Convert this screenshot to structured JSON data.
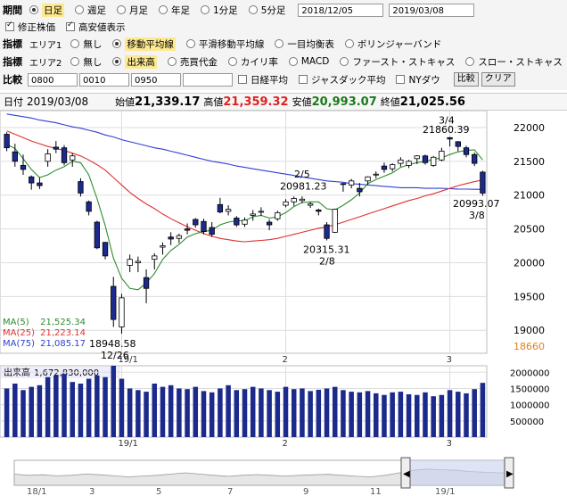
{
  "period": {
    "label": "期間",
    "options": [
      {
        "label": "日足",
        "selected": true
      },
      {
        "label": "週足",
        "selected": false
      },
      {
        "label": "月足",
        "selected": false
      },
      {
        "label": "年足",
        "selected": false
      },
      {
        "label": "1分足",
        "selected": false
      },
      {
        "label": "5分足",
        "selected": false
      }
    ],
    "date_from": "2018/12/05",
    "date_to": "2019/03/08"
  },
  "display": {
    "modified_price": {
      "label": "修正株価",
      "checked": true
    },
    "high_low": {
      "label": "高安値表示",
      "checked": true
    }
  },
  "indicator1": {
    "label": "指標",
    "area": "エリア1",
    "options": [
      {
        "label": "無し",
        "selected": false
      },
      {
        "label": "移動平均線",
        "selected": true
      },
      {
        "label": "平滑移動平均線",
        "selected": false
      },
      {
        "label": "一目均衡表",
        "selected": false
      },
      {
        "label": "ボリンジャーバンド",
        "selected": false
      }
    ]
  },
  "indicator2": {
    "label": "指標",
    "area": "エリア2",
    "options": [
      {
        "label": "無し",
        "selected": false
      },
      {
        "label": "出来高",
        "selected": true
      },
      {
        "label": "売買代金",
        "selected": false
      },
      {
        "label": "カイリ率",
        "selected": false
      },
      {
        "label": "MACD",
        "selected": false
      },
      {
        "label": "ファースト・ストキャス",
        "selected": false
      },
      {
        "label": "スロー・ストキャス",
        "selected": false
      }
    ]
  },
  "compare": {
    "label": "比較",
    "codes": [
      "0800",
      "0010",
      "0950",
      ""
    ],
    "checks": [
      {
        "label": "日経平均",
        "checked": false
      },
      {
        "label": "ジャスダック平均",
        "checked": false
      },
      {
        "label": "NYダウ",
        "checked": false
      }
    ],
    "compare_button": "比較",
    "clear_button": "クリア"
  },
  "ohlc_bar": {
    "label": "日付",
    "date": "2019/03/08",
    "open_label": "始値",
    "open": "21,339.17",
    "high_label": "高値",
    "high": "21,359.32",
    "low_label": "安値",
    "low": "20,993.07",
    "close_label": "終値",
    "close": "21,025.56"
  },
  "ma_legend": [
    {
      "label": "MA(5)",
      "value": "21,525.34",
      "color": "#2e8b2e"
    },
    {
      "label": "MA(25)",
      "value": "21,223.14",
      "color": "#e03030"
    },
    {
      "label": "MA(75)",
      "value": "21,085.17",
      "color": "#3040d0"
    }
  ],
  "volume_label": "出来高",
  "volume_value": "1,672,830,000",
  "annotations": {
    "low_value": "18948.58",
    "low_date": "12/26",
    "feb5_value": "20981.23",
    "feb5_date": "2/5",
    "feb8_value": "20315.31",
    "feb8_date": "2/8",
    "mar4_date": "3/4",
    "mar4_value": "21860.39",
    "mar8_value": "20993.07",
    "mar8_date": "3/8"
  },
  "current_price_marker": "18660",
  "colors": {
    "up": "#ffffff",
    "down": "#1c2a8c",
    "ma5": "#2e8b2e",
    "ma25": "#e03030",
    "ma75": "#3040d0",
    "accent": "#fde98f"
  },
  "navigator": {
    "labels": [
      "18/1",
      "3",
      "5",
      "7",
      "9",
      "11",
      "19/1"
    ]
  },
  "chart_data": {
    "type": "candlestick",
    "x_month_labels": [
      "19/1",
      "2",
      "3"
    ],
    "price_ticks": [
      22000,
      21500,
      21000,
      20500,
      20000,
      19500,
      19000
    ],
    "price_range": [
      18660,
      22250
    ],
    "volume_ticks": [
      2000000,
      1500000,
      1000000,
      500000
    ],
    "volume_tick_labels": [
      "2000000",
      "1500000",
      "1000000",
      "500000"
    ],
    "volume_range": [
      0,
      2200000
    ],
    "candles": [
      [
        21900,
        21930,
        21650,
        21700
      ],
      [
        21640,
        21760,
        21420,
        21500
      ],
      [
        21440,
        21600,
        21300,
        21380
      ],
      [
        21270,
        21290,
        21080,
        21180
      ],
      [
        21180,
        21260,
        21090,
        21140
      ],
      [
        21500,
        21680,
        21420,
        21610
      ],
      [
        21710,
        21800,
        21620,
        21680
      ],
      [
        21700,
        21740,
        21440,
        21480
      ],
      [
        21520,
        21620,
        21420,
        21580
      ],
      [
        21200,
        21250,
        20980,
        21030
      ],
      [
        20900,
        20920,
        20700,
        20760
      ],
      [
        20600,
        20620,
        20200,
        20220
      ],
      [
        20300,
        20310,
        20050,
        20100
      ],
      [
        19650,
        19790,
        19050,
        19160
      ],
      [
        19050,
        19540,
        18950,
        19480
      ],
      [
        19960,
        20120,
        19860,
        20050
      ],
      [
        20000,
        20090,
        19860,
        20020
      ],
      [
        19780,
        19900,
        19400,
        19620
      ],
      [
        20050,
        20140,
        19900,
        20100
      ],
      [
        20230,
        20300,
        20120,
        20250
      ],
      [
        20380,
        20450,
        20260,
        20350
      ],
      [
        20360,
        20430,
        20290,
        20400
      ],
      [
        20500,
        20580,
        20420,
        20480
      ],
      [
        20640,
        20660,
        20520,
        20560
      ],
      [
        20610,
        20650,
        20420,
        20460
      ],
      [
        20520,
        20600,
        20380,
        20420
      ],
      [
        20860,
        20960,
        20730,
        20750
      ],
      [
        20760,
        20850,
        20700,
        20790
      ],
      [
        20660,
        20690,
        20530,
        20560
      ],
      [
        20570,
        20670,
        20530,
        20630
      ],
      [
        20700,
        20780,
        20620,
        20720
      ],
      [
        20760,
        20820,
        20690,
        20760
      ],
      [
        20600,
        20640,
        20480,
        20560
      ],
      [
        20650,
        20770,
        20620,
        20740
      ],
      [
        20850,
        20940,
        20820,
        20900
      ],
      [
        20900,
        20980,
        20840,
        20950
      ],
      [
        20920,
        20980,
        20880,
        20940
      ],
      [
        20850,
        20900,
        20810,
        20870
      ],
      [
        20780,
        20800,
        20700,
        20760
      ],
      [
        20560,
        20600,
        20330,
        20360
      ],
      [
        20450,
        20800,
        20440,
        20790
      ],
      [
        21170,
        21180,
        21050,
        21160
      ],
      [
        21150,
        21240,
        21100,
        21210
      ],
      [
        21100,
        21180,
        20980,
        21050
      ],
      [
        21210,
        21280,
        21150,
        21270
      ],
      [
        21300,
        21350,
        21250,
        21310
      ],
      [
        21430,
        21480,
        21330,
        21380
      ],
      [
        21390,
        21470,
        21350,
        21450
      ],
      [
        21470,
        21560,
        21420,
        21520
      ],
      [
        21440,
        21520,
        21400,
        21500
      ],
      [
        21540,
        21590,
        21460,
        21580
      ],
      [
        21580,
        21600,
        21450,
        21480
      ],
      [
        21440,
        21580,
        21420,
        21560
      ],
      [
        21520,
        21700,
        21500,
        21650
      ],
      [
        21850,
        21860,
        21720,
        21830
      ],
      [
        21790,
        21800,
        21650,
        21720
      ],
      [
        21700,
        21730,
        21560,
        21600
      ],
      [
        21600,
        21630,
        21430,
        21470
      ],
      [
        21340,
        21360,
        20990,
        21030
      ]
    ],
    "volumes": [
      1500000,
      1650000,
      1450000,
      1550000,
      1600000,
      1850000,
      1900000,
      1950000,
      1700000,
      1650000,
      1800000,
      1900000,
      1850000,
      2200000,
      1800000,
      1500000,
      1450000,
      1400000,
      1650000,
      1550000,
      1600000,
      1500000,
      1480000,
      1550000,
      1420000,
      1380000,
      1500000,
      1600000,
      1450000,
      1480000,
      1550000,
      1500000,
      1450000,
      1400000,
      1550000,
      1480000,
      1500000,
      1420000,
      1460000,
      1500000,
      1550000,
      1450000,
      1400000,
      1380000,
      1420000,
      1350000,
      1300000,
      1380000,
      1400000,
      1320000,
      1300000,
      1380000,
      1260000,
      1300000,
      1450000,
      1400000,
      1350000,
      1480000,
      1672830
    ],
    "ma5": [
      21750,
      21690,
      21540,
      21380,
      21260,
      21300,
      21370,
      21420,
      21500,
      21480,
      21300,
      20950,
      20550,
      20070,
      19770,
      19620,
      19600,
      19700,
      19840,
      20050,
      20180,
      20270,
      20380,
      20430,
      20460,
      20480,
      20560,
      20600,
      20620,
      20620,
      20680,
      20700,
      20660,
      20680,
      20740,
      20830,
      20890,
      20900,
      20900,
      20800,
      20780,
      20850,
      20930,
      21030,
      21170,
      21230,
      21280,
      21330,
      21410,
      21450,
      21480,
      21500,
      21530,
      21550,
      21600,
      21640,
      21660,
      21670,
      21520
    ],
    "ma25": [
      21950,
      21900,
      21850,
      21800,
      21760,
      21720,
      21690,
      21660,
      21620,
      21580,
      21520,
      21450,
      21370,
      21260,
      21150,
      21040,
      20950,
      20870,
      20800,
      20720,
      20650,
      20590,
      20530,
      20480,
      20430,
      20390,
      20360,
      20340,
      20320,
      20310,
      20320,
      20330,
      20340,
      20360,
      20390,
      20420,
      20450,
      20480,
      20510,
      20530,
      20560,
      20600,
      20640,
      20680,
      20720,
      20760,
      20800,
      20840,
      20880,
      20920,
      20950,
      20990,
      21020,
      21060,
      21100,
      21140,
      21170,
      21200,
      21223
    ],
    "ma75": [
      22200,
      22180,
      22160,
      22140,
      22110,
      22090,
      22070,
      22040,
      22010,
      21990,
      21960,
      21930,
      21890,
      21860,
      21820,
      21790,
      21760,
      21730,
      21700,
      21680,
      21650,
      21620,
      21590,
      21560,
      21530,
      21500,
      21480,
      21460,
      21430,
      21410,
      21390,
      21370,
      21350,
      21330,
      21310,
      21290,
      21270,
      21250,
      21230,
      21210,
      21200,
      21190,
      21170,
      21160,
      21150,
      21140,
      21130,
      21120,
      21110,
      21110,
      21110,
      21100,
      21100,
      21100,
      21095,
      21090,
      21088,
      21086,
      21085
    ],
    "navigator_line": [
      0.55,
      0.6,
      0.58,
      0.62,
      0.6,
      0.55,
      0.58,
      0.62,
      0.66,
      0.63,
      0.6,
      0.55,
      0.5,
      0.55,
      0.6,
      0.64,
      0.6,
      0.57,
      0.6,
      0.63,
      0.6,
      0.58,
      0.56,
      0.6,
      0.64,
      0.66,
      0.6,
      0.5,
      0.4,
      0.35,
      0.38,
      0.4,
      0.45,
      0.48,
      0.5,
      0.52
    ]
  }
}
